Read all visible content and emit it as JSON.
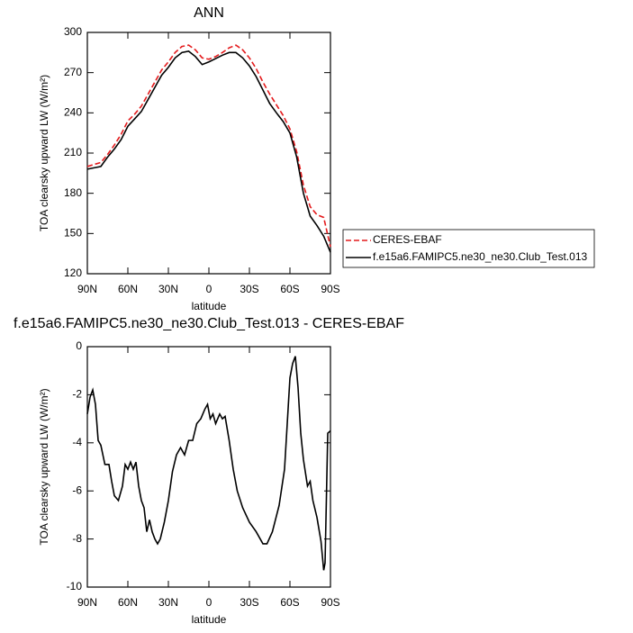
{
  "chart_data": [
    {
      "type": "line",
      "title": "ANN",
      "xlabel": "latitude",
      "ylabel": "TOA clearsky upward LW (W/m²)",
      "x": [
        90,
        85,
        80,
        75,
        70,
        65,
        60,
        55,
        50,
        45,
        40,
        35,
        30,
        25,
        20,
        15,
        10,
        5,
        0,
        -5,
        -10,
        -15,
        -20,
        -25,
        -30,
        -35,
        -40,
        -45,
        -50,
        -55,
        -60,
        -65,
        -70,
        -75,
        -80,
        -85,
        -90
      ],
      "series": [
        {
          "name": "CERES-EBAF",
          "color": "#e41a1c",
          "dashed": true,
          "values": [
            200,
            201.5,
            203,
            209,
            216,
            224,
            234,
            239,
            245,
            254,
            263,
            272,
            278,
            285,
            289.5,
            290.5,
            287,
            281,
            280,
            282,
            285,
            288.5,
            290.5,
            287,
            281,
            273,
            263,
            254,
            246,
            238,
            228,
            211,
            186,
            170,
            164,
            162,
            140
          ]
        },
        {
          "name": "f.e15a6.FAMIPC5.ne30_ne30.Club_Test.013",
          "color": "#000000",
          "dashed": false,
          "values": [
            198,
            199,
            200,
            207,
            213,
            220,
            230,
            235.5,
            241,
            250,
            259,
            268,
            274,
            281,
            285,
            286,
            282,
            276,
            278,
            280.5,
            283,
            285,
            285,
            281,
            275,
            267,
            257,
            247,
            240,
            233.5,
            225,
            207,
            180,
            163,
            156,
            148,
            136
          ]
        }
      ],
      "xlim": [
        90,
        -90
      ],
      "xticks": [
        {
          "value": 90,
          "label": "90N"
        },
        {
          "value": 60,
          "label": "60N"
        },
        {
          "value": 30,
          "label": "30N"
        },
        0,
        {
          "value": -30,
          "label": "30S"
        },
        {
          "value": -60,
          "label": "60S"
        },
        {
          "value": -90,
          "label": "90S"
        }
      ],
      "ylim": [
        120,
        300
      ],
      "yticks": [
        120,
        150,
        180,
        210,
        240,
        270,
        300
      ],
      "legend": "right"
    },
    {
      "type": "line",
      "title": "f.e15a6.FAMIPC5.ne30_ne30.Club_Test.013 - CERES-EBAF",
      "xlabel": "latitude",
      "ylabel": "TOA clearsky upward LW (W/m²)",
      "x": [
        90,
        88,
        86,
        84,
        82,
        80,
        77,
        74,
        72,
        70,
        67,
        64,
        62,
        60,
        58,
        56,
        54,
        52,
        50,
        48,
        46,
        44,
        42,
        40,
        38,
        36,
        33,
        30,
        27,
        24,
        21,
        18,
        15,
        12,
        9,
        6,
        3,
        1,
        -1,
        -3,
        -5,
        -8,
        -10,
        -12,
        -15,
        -18,
        -21,
        -25,
        -30,
        -35,
        -40,
        -43,
        -47,
        -52,
        -56,
        -58,
        -60,
        -62,
        -64,
        -66,
        -68,
        -70,
        -73,
        -75,
        -77,
        -80,
        -83,
        -85,
        -86,
        -88,
        -90
      ],
      "color": "#000000",
      "values": [
        -2.8,
        -2.1,
        -1.8,
        -2.4,
        -3.9,
        -4.1,
        -4.9,
        -4.9,
        -5.6,
        -6.2,
        -6.4,
        -5.8,
        -4.9,
        -5.1,
        -4.8,
        -5.1,
        -4.8,
        -5.8,
        -6.4,
        -6.7,
        -7.7,
        -7.2,
        -7.7,
        -8.0,
        -8.2,
        -8.0,
        -7.3,
        -6.4,
        -5.2,
        -4.5,
        -4.2,
        -4.5,
        -3.9,
        -3.9,
        -3.2,
        -3.0,
        -2.6,
        -2.4,
        -3.0,
        -2.8,
        -3.2,
        -2.8,
        -3.0,
        -2.9,
        -3.9,
        -5.1,
        -6.0,
        -6.7,
        -7.3,
        -7.7,
        -8.2,
        -8.2,
        -7.7,
        -6.6,
        -5.1,
        -3.2,
        -1.3,
        -0.7,
        -0.4,
        -1.7,
        -3.6,
        -4.7,
        -5.8,
        -5.6,
        -6.4,
        -7.1,
        -8.1,
        -9.3,
        -9.0,
        -3.6,
        -3.5
      ],
      "xlim": [
        90,
        -90
      ],
      "xticks": [
        {
          "value": 90,
          "label": "90N"
        },
        {
          "value": 60,
          "label": "60N"
        },
        {
          "value": 30,
          "label": "30N"
        },
        0,
        {
          "value": -30,
          "label": "30S"
        },
        {
          "value": -60,
          "label": "60S"
        },
        {
          "value": -90,
          "label": "90S"
        }
      ],
      "ylim": [
        -10,
        0
      ],
      "yticks": [
        -10,
        -8,
        -6,
        -4,
        -2,
        0
      ]
    }
  ]
}
